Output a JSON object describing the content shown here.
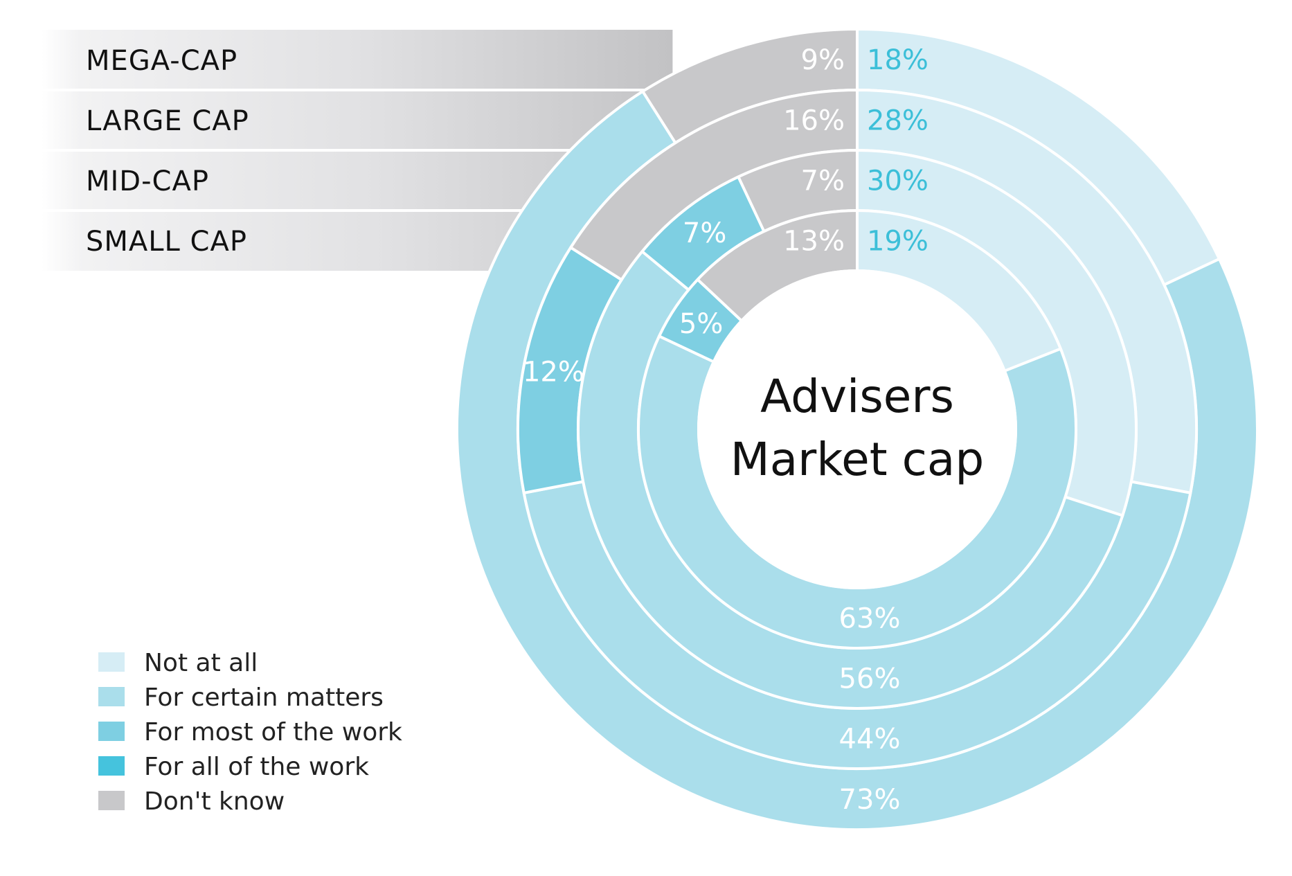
{
  "colors": {
    "not_at_all": "#d6edf5",
    "for_certain_matters": "#aadeeb",
    "for_most_of_the_work": "#7ecfe2",
    "for_all_of_the_work": "#45c3dd",
    "dont_know": "#c8c8ca",
    "cyan_text": "#3cbfd8",
    "white_text": "#ffffff"
  },
  "chart_data": {
    "type": "donut",
    "title": "Advisers\nMarket cap",
    "title_lines": [
      "Advisers",
      "Market cap"
    ],
    "legend": [
      {
        "key": "not_at_all",
        "label": "Not at all"
      },
      {
        "key": "for_certain_matters",
        "label": "For certain matters"
      },
      {
        "key": "for_most_of_the_work",
        "label": "For most of the work"
      },
      {
        "key": "for_all_of_the_work",
        "label": "For all of the work"
      },
      {
        "key": "dont_know",
        "label": "Don't know"
      }
    ],
    "legend_placement": "bottom-left",
    "rings": [
      {
        "name": "MEGA-CAP",
        "segments": [
          {
            "key": "not_at_all",
            "value": 18,
            "label": "18%"
          },
          {
            "key": "for_certain_matters",
            "value": 73,
            "label": "73%"
          },
          {
            "key": "dont_know",
            "value": 9,
            "label": "9%"
          }
        ]
      },
      {
        "name": "LARGE CAP",
        "segments": [
          {
            "key": "not_at_all",
            "value": 28,
            "label": "28%"
          },
          {
            "key": "for_certain_matters",
            "value": 44,
            "label": "44%"
          },
          {
            "key": "for_most_of_the_work",
            "value": 12,
            "label": "12%"
          },
          {
            "key": "dont_know",
            "value": 16,
            "label": "16%"
          }
        ]
      },
      {
        "name": "MID-CAP",
        "segments": [
          {
            "key": "not_at_all",
            "value": 30,
            "label": "30%"
          },
          {
            "key": "for_certain_matters",
            "value": 56,
            "label": "56%"
          },
          {
            "key": "for_most_of_the_work",
            "value": 7,
            "label": "7%"
          },
          {
            "key": "dont_know",
            "value": 7,
            "label": "7%"
          }
        ]
      },
      {
        "name": "SMALL CAP",
        "segments": [
          {
            "key": "not_at_all",
            "value": 19,
            "label": "19%"
          },
          {
            "key": "for_certain_matters",
            "value": 63,
            "label": "63%"
          },
          {
            "key": "for_most_of_the_work",
            "value": 5,
            "label": "5%"
          },
          {
            "key": "dont_know",
            "value": 13,
            "label": "13%"
          }
        ]
      }
    ]
  }
}
